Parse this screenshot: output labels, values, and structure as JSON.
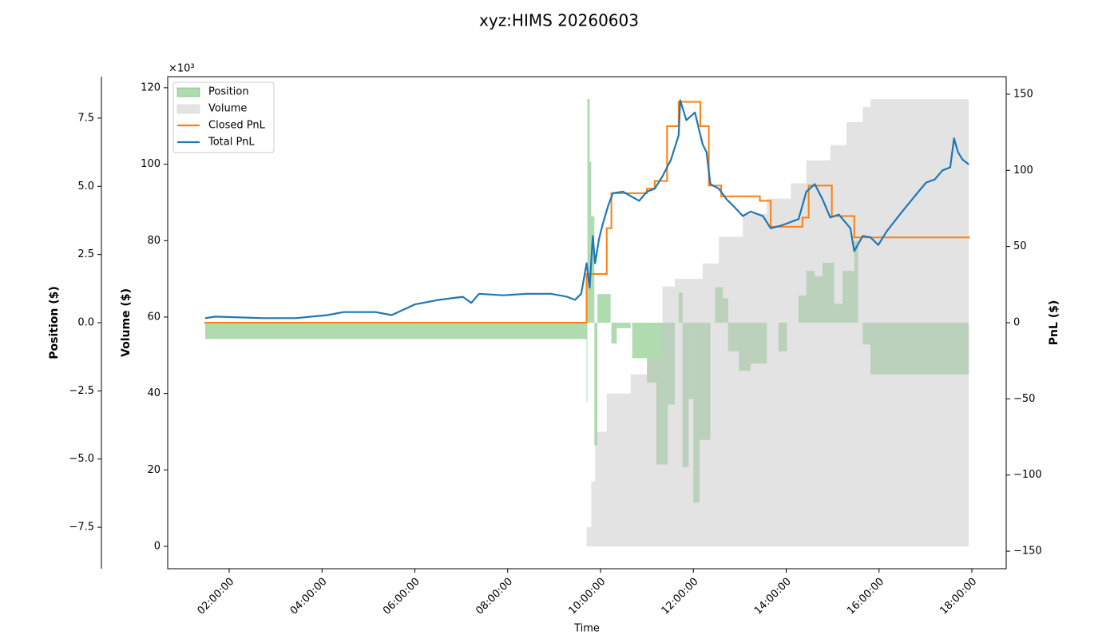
{
  "chart_data": {
    "type": "line",
    "title": "xyz:HIMS 20260603",
    "xlabel": "Time",
    "xlim": [
      "00:40:30",
      "18:44:24"
    ],
    "xticks": [
      "02:00:00",
      "04:00:00",
      "06:00:00",
      "08:00:00",
      "10:00:00",
      "12:00:00",
      "14:00:00",
      "16:00:00",
      "18:00:00"
    ],
    "ylabel": "Position ($)",
    "ycolor": "#008000",
    "y_offset_label": "×10³",
    "ylim": [
      -9.02,
      9.02
    ],
    "yticks": [
      {
        "value": -7.5,
        "label": "−7.5"
      },
      {
        "value": -5,
        "label": "−5.0"
      },
      {
        "value": -2.5,
        "label": "−2.5"
      },
      {
        "value": 0,
        "label": "0.0"
      },
      2.5,
      {
        "value": 5,
        "label": "5.0"
      },
      7.5
    ],
    "y3label": "Volume ($)",
    "y3color": "#808080",
    "y3lim": [
      -5.85,
      122.9
    ],
    "y3ticks": [
      0,
      20,
      40,
      60,
      80,
      100,
      120
    ],
    "y2label": "PnL ($)",
    "y2color": "#000000",
    "y2lim": [
      -161.5,
      161.5
    ],
    "y2ticks": [
      {
        "value": -150,
        "label": "−150"
      },
      {
        "value": -100,
        "label": "−100"
      },
      {
        "value": -50,
        "label": "−50"
      },
      0,
      50,
      100,
      150
    ],
    "legend": "upper left",
    "series": [
      {
        "name": "Position",
        "color": "#2ca02c",
        "style": "area_step",
        "axis": "y",
        "x": [
          "01:29",
          "09:40",
          "09:42",
          "09:43",
          "09:46",
          "09:48",
          "09:52",
          "09:56",
          "10:13",
          "10:14",
          "10:21",
          "10:39",
          "10:41",
          "11:00",
          "11:12",
          "11:27",
          "11:36",
          "11:41",
          "11:46",
          "11:54",
          "12:00",
          "12:08",
          "12:22",
          "12:28",
          "12:38",
          "12:45",
          "12:59",
          "13:14",
          "13:35",
          "13:50",
          "14:01",
          "14:16",
          "14:26",
          "14:37",
          "14:47",
          "15:02",
          "15:13",
          "15:28",
          "15:33",
          "15:39",
          "15:49",
          "17:56"
        ],
        "values": [
          -0.6,
          -0.6,
          -2.9,
          8.2,
          5.9,
          3.9,
          -4.5,
          1.05,
          0,
          -0.76,
          -0.2,
          0,
          -1.3,
          -2.2,
          -5.2,
          -3,
          0,
          1.1,
          -5.3,
          -2.8,
          -6.6,
          -4.3,
          0,
          1.3,
          0.9,
          -1.05,
          -1.76,
          -1.5,
          0,
          -1.05,
          0,
          1,
          1.9,
          1.7,
          2.2,
          0.7,
          1.9,
          3.0,
          0,
          -0.8,
          -1.9,
          -1.9
        ]
      },
      {
        "name": "Volume",
        "color": "#c8c8c8",
        "style": "area_step",
        "axis": "y3",
        "x": [
          "01:29",
          "09:40",
          "09:42",
          "09:48",
          "09:53",
          "10:08",
          "10:39",
          "11:00",
          "11:20",
          "11:36",
          "12:12",
          "12:33",
          "13:04",
          "13:35",
          "14:06",
          "14:26",
          "14:57",
          "15:18",
          "15:39",
          "15:49",
          "17:56"
        ],
        "values": [
          0,
          0,
          5,
          17,
          30,
          40,
          45,
          49,
          68,
          70,
          74,
          81,
          87,
          91,
          95,
          101,
          105,
          111,
          115,
          117,
          117
        ]
      },
      {
        "name": "Closed PnL",
        "color": "#ff7f0e",
        "style": "step",
        "axis": "y2",
        "x": [
          "01:29",
          "09:42",
          "10:08",
          "10:14",
          "11:00",
          "11:10",
          "11:26",
          "11:41",
          "12:09",
          "12:20",
          "12:36",
          "13:26",
          "13:40",
          "14:21",
          "14:29",
          "14:59",
          "15:28",
          "17:56"
        ],
        "values": [
          0,
          32,
          62,
          85,
          88,
          93,
          129,
          145,
          129,
          90,
          83,
          80,
          63,
          69,
          90,
          70,
          56,
          56
        ]
      },
      {
        "name": "Total PnL",
        "color": "#1f77b4",
        "style": "line",
        "axis": "y2",
        "x": [
          "01:29",
          "01:42",
          "02:44",
          "03:26",
          "04:07",
          "04:28",
          "05:09",
          "05:30",
          "06:00",
          "06:31",
          "07:02",
          "07:13",
          "07:23",
          "07:54",
          "08:25",
          "08:56",
          "09:17",
          "09:27",
          "09:35",
          "09:42",
          "09:46",
          "09:50",
          "09:53",
          "09:58",
          "10:03",
          "10:10",
          "10:16",
          "10:29",
          "10:50",
          "11:00",
          "11:10",
          "11:20",
          "11:31",
          "11:41",
          "11:43",
          "11:51",
          "12:02",
          "12:12",
          "12:17",
          "12:22",
          "12:33",
          "12:43",
          "12:53",
          "13:04",
          "13:14",
          "13:30",
          "13:40",
          "13:55",
          "14:16",
          "14:26",
          "14:37",
          "14:47",
          "14:57",
          "15:08",
          "15:23",
          "15:28",
          "15:39",
          "15:49",
          "15:59",
          "16:10",
          "16:30",
          "16:51",
          "17:01",
          "17:12",
          "17:22",
          "17:32",
          "17:37",
          "17:42",
          "17:48",
          "17:56"
        ],
        "values": [
          3,
          4,
          3,
          3,
          5,
          7,
          7,
          5,
          12,
          15,
          17,
          13,
          19,
          18,
          19,
          19,
          17,
          15,
          19,
          39,
          23,
          57,
          39,
          55,
          65,
          77,
          85,
          86,
          80,
          86,
          88,
          96,
          107,
          123,
          146,
          133,
          138,
          117,
          112,
          91,
          88,
          81,
          76,
          70,
          73,
          70,
          62,
          64,
          68,
          86,
          91,
          81,
          69,
          71,
          62,
          47,
          57,
          56,
          51,
          60,
          73,
          86,
          92,
          94,
          100,
          102,
          121,
          112,
          107,
          104
        ]
      }
    ]
  }
}
